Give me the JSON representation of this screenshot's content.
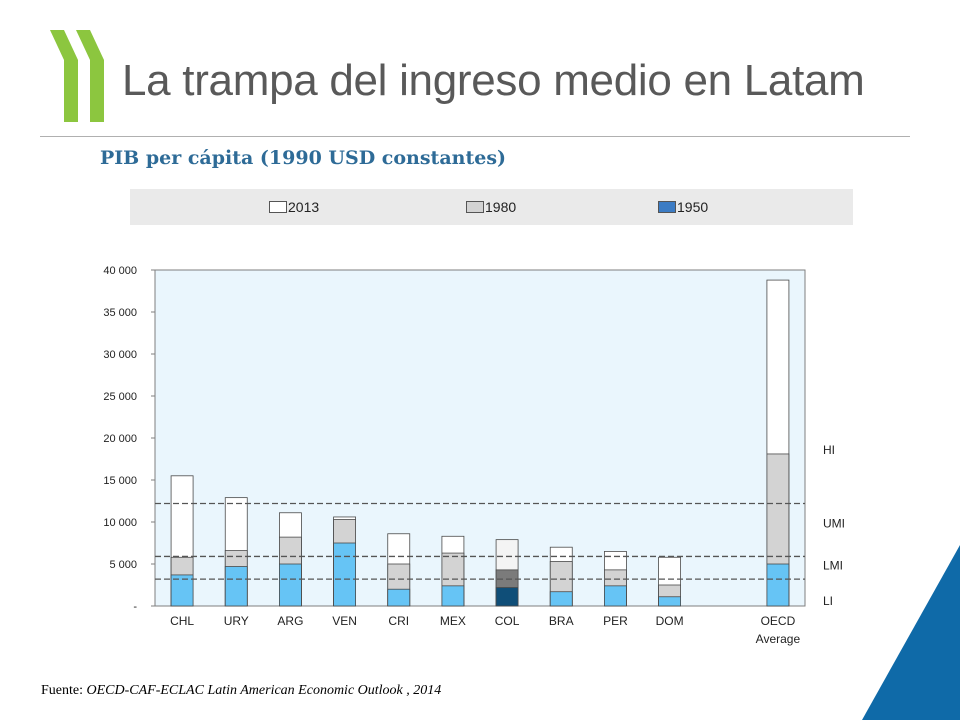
{
  "slide": {
    "title": "La trampa del ingreso medio en Latam",
    "subtitle": "PIB per cápita (1990  USD constantes)",
    "source_label": "Fuente:",
    "source_text": " OECD-CAF-ECLAC Latin American  Economic Outlook , 2014"
  },
  "logo": {
    "icon": "oecd-chevrons-logo",
    "color": "#8cc63f"
  },
  "corner_accent": {
    "color": "#0f6aa8"
  },
  "legend": {
    "items": [
      {
        "label": "2013",
        "color": "#ffffff"
      },
      {
        "label": "1980",
        "color": "#d3d3d3"
      },
      {
        "label": "1950",
        "color": "#3c7cc4"
      }
    ]
  },
  "chart_data": {
    "type": "bar",
    "title": "",
    "xlabel": "",
    "ylabel": "",
    "ylim": [
      0,
      40000
    ],
    "yticks": [
      0,
      5000,
      10000,
      15000,
      20000,
      25000,
      30000,
      35000,
      40000
    ],
    "ytick_labels": [
      "-",
      "5 000",
      "10 000",
      "15 000",
      "20 000",
      "25 000",
      "30 000",
      "35 000",
      "40 000"
    ],
    "plot_background": "#eaf6fd",
    "grid": false,
    "legend_position": "top",
    "categories": [
      {
        "name": "CHL",
        "line2": ""
      },
      {
        "name": "URY",
        "line2": ""
      },
      {
        "name": "ARG",
        "line2": ""
      },
      {
        "name": "VEN",
        "line2": ""
      },
      {
        "name": "CRI",
        "line2": ""
      },
      {
        "name": "MEX",
        "line2": ""
      },
      {
        "name": "COL",
        "line2": ""
      },
      {
        "name": "BRA",
        "line2": ""
      },
      {
        "name": "PER",
        "line2": ""
      },
      {
        "name": "DOM",
        "line2": ""
      },
      {
        "name": "",
        "line2": ""
      },
      {
        "name": "OECD",
        "line2": "Average"
      }
    ],
    "series": [
      {
        "name": "2013",
        "color": "#ffffff",
        "values": [
          15500,
          12900,
          11100,
          10600,
          8600,
          8300,
          7900,
          7000,
          6500,
          5800,
          null,
          38800
        ]
      },
      {
        "name": "1980",
        "color": "#d3d3d3",
        "values": [
          5800,
          6600,
          8200,
          10300,
          5000,
          6300,
          4300,
          5300,
          4300,
          2500,
          null,
          18100
        ]
      },
      {
        "name": "1950",
        "color": "#66c4f5",
        "values": [
          3700,
          4700,
          5000,
          7500,
          2000,
          2400,
          2200,
          1700,
          2400,
          1100,
          null,
          5000
        ]
      }
    ],
    "highlight_category": "COL",
    "highlight_colors": [
      "#f4f4f4",
      "#7b7b7b",
      "#0f4e78"
    ],
    "thresholds": [
      {
        "label": "LI",
        "value": 3200
      },
      {
        "label": "LMI",
        "value": 5900
      },
      {
        "label": "UMI",
        "value": 12200
      },
      {
        "label": "HI",
        "value": null
      }
    ],
    "threshold_label_values": {
      "LI": 600,
      "LMI": 4800,
      "UMI": 9800,
      "HI": 18600
    }
  }
}
